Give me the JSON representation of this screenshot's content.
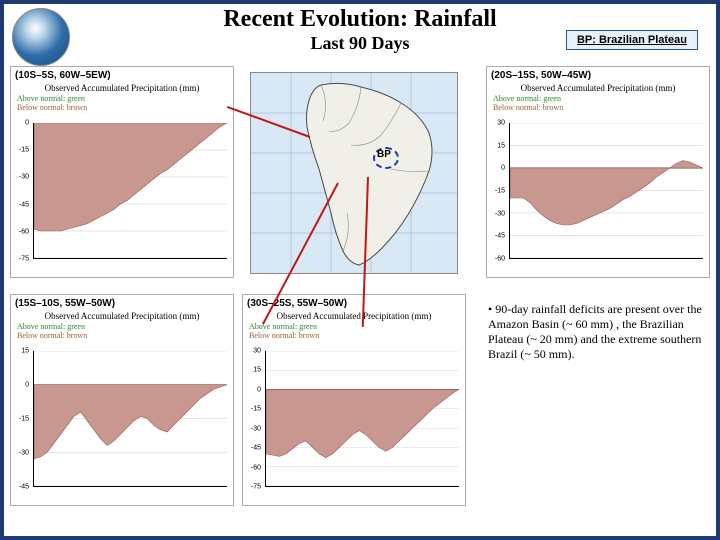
{
  "header": {
    "title": "Recent Evolution: Rainfall",
    "subtitle": "Last 90 Days",
    "legend": "BP: Brazilian Plateau"
  },
  "colors": {
    "slide_bg": "#1e3a6e",
    "area_fill": "#c89890",
    "area_stroke": "#9a5e50",
    "legend_green": "#2a8a2a",
    "legend_brown": "#9a5e36",
    "bp_dash": "#1e3a9e",
    "arrow": "#c01818",
    "map_water": "#d8e8f4",
    "map_land": "#f0f0e8"
  },
  "charts": {
    "tl": {
      "region": "(10S–5S, 60W–5EW)",
      "caption": "Observed Accumulated Precipitation (mm)",
      "legend_above": "Above normal: green",
      "legend_below": "Below normal: brown",
      "ylim": [
        -75,
        0
      ],
      "yticks": [
        "0",
        "-15",
        "-30",
        "-45",
        "-60",
        "-75"
      ],
      "values": [
        0,
        -2,
        -5,
        -8,
        -11,
        -14,
        -17,
        -20,
        -23,
        -26,
        -28,
        -31,
        -34,
        -37,
        -40,
        -43,
        -45,
        -48,
        -50,
        -52,
        -54,
        -56,
        -57,
        -58,
        -59,
        -60,
        -60,
        -60,
        -60,
        -59
      ]
    },
    "tr": {
      "region": "(20S–15S, 50W–45W)",
      "caption": "Observed Accumulated Precipitation (mm)",
      "legend_above": "Above normal: green",
      "legend_below": "Below normal: brown",
      "ylim": [
        -60,
        30
      ],
      "yticks": [
        "30",
        "15",
        "0",
        "-15",
        "-30",
        "-45",
        "-60"
      ],
      "values": [
        0,
        2,
        4,
        5,
        3,
        0,
        -3,
        -6,
        -10,
        -13,
        -16,
        -19,
        -21,
        -24,
        -27,
        -29,
        -31,
        -33,
        -35,
        -37,
        -38,
        -38,
        -37,
        -35,
        -32,
        -28,
        -23,
        -20,
        -20,
        -20
      ]
    },
    "bl": {
      "region": "(15S–10S, 55W–50W)",
      "caption": "Observed Accumulated Precipitation (mm)",
      "legend_above": "Above normal: green",
      "legend_below": "Below normal: brown",
      "ylim": [
        -45,
        15
      ],
      "yticks": [
        "15",
        "0",
        "-15",
        "-30",
        "-45"
      ],
      "values": [
        0,
        -1,
        -2,
        -4,
        -6,
        -9,
        -12,
        -15,
        -18,
        -21,
        -20,
        -18,
        -15,
        -14,
        -16,
        -19,
        -22,
        -25,
        -27,
        -24,
        -20,
        -16,
        -12,
        -14,
        -18,
        -22,
        -26,
        -30,
        -32,
        -33
      ]
    },
    "bm": {
      "region": "(30S–25S, 55W–50W)",
      "caption": "Observed Accumulated Precipitation (mm)",
      "legend_above": "Above normal: green",
      "legend_below": "Below normal: brown",
      "ylim": [
        -75,
        30
      ],
      "yticks": [
        "30",
        "15",
        "0",
        "-15",
        "-30",
        "-45",
        "-60",
        "-75"
      ],
      "values": [
        0,
        -3,
        -7,
        -11,
        -15,
        -20,
        -25,
        -30,
        -35,
        -40,
        -45,
        -48,
        -45,
        -40,
        -35,
        -32,
        -35,
        -40,
        -45,
        -50,
        -53,
        -50,
        -45,
        -40,
        -42,
        -46,
        -50,
        -52,
        -51,
        -50
      ]
    }
  },
  "map": {
    "bp_label": "BP",
    "bp_xy": [
      132,
      82
    ]
  },
  "bullet": "• 90-day rainfall deficits are present over the Amazon Basin (~ 60 mm) , the Brazilian Plateau (~ 20 mm) and the extreme southern Brazil (~ 50 mm)."
}
